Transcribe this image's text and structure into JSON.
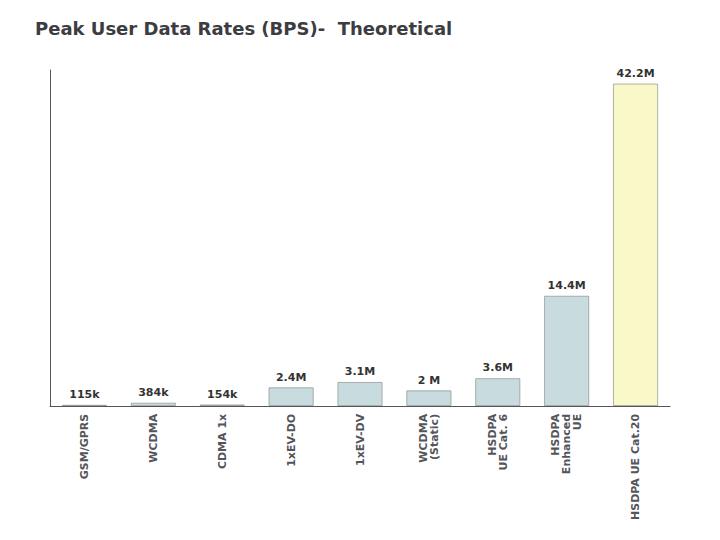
{
  "chart_data": {
    "type": "bar",
    "title": "Peak User Data Rates (BPS)-  Theoretical",
    "categories": [
      "GSM/GPRS",
      "WCDMA",
      "CDMA 1x",
      "1xEV-DO",
      "1xEV-DV",
      "WCDMA\n(Static)",
      "HSDPA\nUE Cat. 6",
      "HSDPA\nEnhanced\nUE",
      "HSDPA UE Cat.20"
    ],
    "values": [
      0.115,
      0.384,
      0.154,
      2.4,
      3.1,
      2.0,
      3.6,
      14.4,
      42.2
    ],
    "value_labels": [
      "115k",
      "384k",
      "154k",
      "2.4M",
      "3.1M",
      "2 M",
      "3.6M",
      "14.4M",
      "42.2M"
    ],
    "data_labels": true,
    "colors": [
      "#c8dce0",
      "#c8dce0",
      "#c8dce0",
      "#c8dce0",
      "#c8dce0",
      "#c8dce0",
      "#c8dce0",
      "#c8dce0",
      "#f8f8c8"
    ],
    "ylim": [
      0,
      44
    ],
    "tick_labels": "x",
    "grid": false
  }
}
